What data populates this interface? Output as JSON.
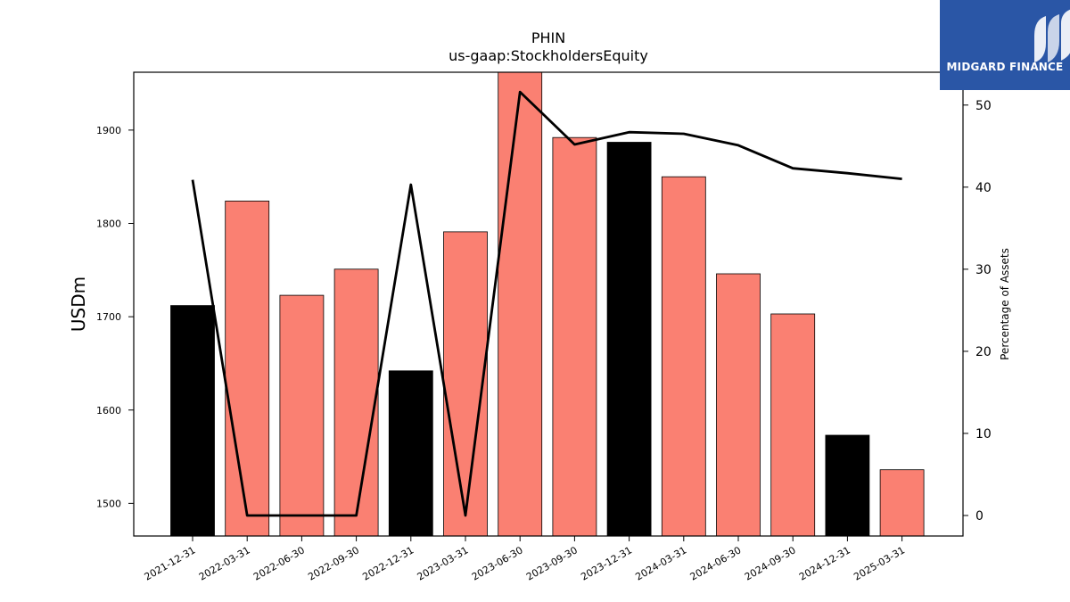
{
  "brand": {
    "name": "MIDGARD FINANCE",
    "logo_icon": "midgard-logo-icon",
    "background": "#2a56a6"
  },
  "chart_data": {
    "type": "bar",
    "title": "PHIN",
    "subtitle": "us-gaap:StockholdersEquity",
    "ylabel": "USDm",
    "y2label": "Percentage of Assets",
    "categories": [
      "2021-12-31",
      "2022-03-31",
      "2022-06-30",
      "2022-09-30",
      "2022-12-31",
      "2023-03-31",
      "2023-06-30",
      "2023-09-30",
      "2023-12-31",
      "2024-03-31",
      "2024-06-30",
      "2024-09-30",
      "2024-12-31",
      "2025-03-31"
    ],
    "series": [
      {
        "type": "bar",
        "values": [
          1712,
          1824,
          1723,
          1751,
          1642,
          1791,
          1963,
          1892,
          1887,
          1850,
          1746,
          1703,
          1573,
          1536
        ],
        "colors": [
          "#000000",
          "#fa8072",
          "#fa8072",
          "#fa8072",
          "#000000",
          "#fa8072",
          "#fa8072",
          "#fa8072",
          "#000000",
          "#fa8072",
          "#fa8072",
          "#fa8072",
          "#000000",
          "#fa8072"
        ]
      },
      {
        "type": "line",
        "axis": "right",
        "color": "#000000",
        "values": [
          40.9,
          0.0,
          0.0,
          0.0,
          40.3,
          0.0,
          51.6,
          45.2,
          46.7,
          46.5,
          45.1,
          42.3,
          41.7,
          41.0
        ]
      }
    ],
    "ylim": [
      1465,
      1962
    ],
    "y2lim": [
      -2.5,
      54.0
    ],
    "yticks": [
      1500,
      1600,
      1700,
      1800,
      1900
    ],
    "y2ticks": [
      0,
      10,
      20,
      30,
      40,
      50
    ],
    "grid": false
  }
}
